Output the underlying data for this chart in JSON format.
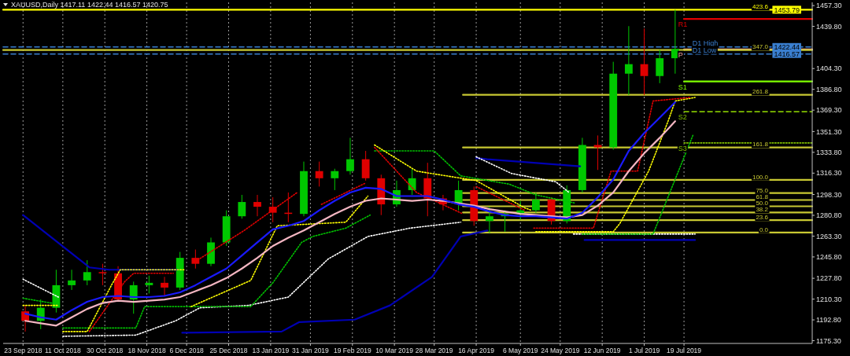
{
  "chart_data": {
    "type": "candlestick",
    "title": "XAUUSD,Daily  1417.11 1422.44 1416.57 1420.75",
    "x": [
      "2018-09-24",
      "2018-10-01",
      "2018-10-08",
      "2018-10-15",
      "2018-10-22",
      "2018-10-29",
      "2018-11-05",
      "2018-11-12",
      "2018-11-19",
      "2018-11-26",
      "2018-12-03",
      "2018-12-10",
      "2018-12-17",
      "2018-12-24",
      "2018-12-31",
      "2019-01-07",
      "2019-01-14",
      "2019-01-21",
      "2019-01-28",
      "2019-02-04",
      "2019-02-11",
      "2019-02-18",
      "2019-02-25",
      "2019-03-04",
      "2019-03-11",
      "2019-03-18",
      "2019-03-25",
      "2019-04-01",
      "2019-04-08",
      "2019-04-15",
      "2019-04-22",
      "2019-04-29",
      "2019-05-06",
      "2019-05-13",
      "2019-05-20",
      "2019-05-27",
      "2019-06-03",
      "2019-06-10",
      "2019-06-17",
      "2019-06-24",
      "2019-07-01",
      "2019-07-08",
      "2019-07-15"
    ],
    "ohlc": [
      [
        1200,
        1205,
        1183,
        1192
      ],
      [
        1192,
        1210,
        1185,
        1203
      ],
      [
        1203,
        1235,
        1199,
        1222
      ],
      [
        1222,
        1235,
        1218,
        1226
      ],
      [
        1226,
        1243,
        1222,
        1233
      ],
      [
        1233,
        1240,
        1222,
        1232
      ],
      [
        1232,
        1238,
        1208,
        1210
      ],
      [
        1210,
        1225,
        1198,
        1222
      ],
      [
        1222,
        1230,
        1215,
        1224
      ],
      [
        1224,
        1229,
        1213,
        1220
      ],
      [
        1220,
        1250,
        1218,
        1245
      ],
      [
        1245,
        1252,
        1236,
        1240
      ],
      [
        1240,
        1262,
        1238,
        1258
      ],
      [
        1258,
        1285,
        1255,
        1280
      ],
      [
        1280,
        1298,
        1278,
        1292
      ],
      [
        1292,
        1298,
        1280,
        1288
      ],
      [
        1288,
        1296,
        1275,
        1283
      ],
      [
        1283,
        1300,
        1275,
        1282
      ],
      [
        1282,
        1326,
        1280,
        1318
      ],
      [
        1318,
        1326,
        1305,
        1312
      ],
      [
        1312,
        1320,
        1302,
        1318
      ],
      [
        1318,
        1346,
        1315,
        1328
      ],
      [
        1328,
        1335,
        1310,
        1312
      ],
      [
        1312,
        1315,
        1281,
        1290
      ],
      [
        1290,
        1310,
        1288,
        1302
      ],
      [
        1302,
        1320,
        1298,
        1312
      ],
      [
        1312,
        1325,
        1280,
        1295
      ],
      [
        1295,
        1298,
        1285,
        1290
      ],
      [
        1290,
        1310,
        1285,
        1302
      ],
      [
        1302,
        1305,
        1272,
        1276
      ],
      [
        1276,
        1288,
        1266,
        1280
      ],
      [
        1280,
        1285,
        1267,
        1282
      ],
      [
        1282,
        1293,
        1277,
        1285
      ],
      [
        1285,
        1300,
        1283,
        1294
      ],
      [
        1294,
        1296,
        1273,
        1276
      ],
      [
        1276,
        1306,
        1274,
        1302
      ],
      [
        1302,
        1346,
        1300,
        1340
      ],
      [
        1340,
        1348,
        1319,
        1338
      ],
      [
        1338,
        1410,
        1336,
        1400
      ],
      [
        1400,
        1440,
        1382,
        1408
      ],
      [
        1408,
        1438,
        1382,
        1398
      ],
      [
        1398,
        1420,
        1392,
        1413
      ],
      [
        1413,
        1453.79,
        1400,
        1420.75
      ]
    ],
    "colors": [
      "#e00000",
      "#00c800",
      "#00c800",
      "#00c800",
      "#00c800",
      "#e00000",
      "#e00000",
      "#00c800",
      "#00c800",
      "#e00000",
      "#00c800",
      "#e00000",
      "#00c800",
      "#00c800",
      "#00c800",
      "#e00000",
      "#e00000",
      "#e00000",
      "#00c800",
      "#e00000",
      "#00c800",
      "#00c800",
      "#e00000",
      "#e00000",
      "#00c800",
      "#00c800",
      "#e00000",
      "#e00000",
      "#00c800",
      "#e00000",
      "#00c800",
      "#00c800",
      "#00c800",
      "#00c800",
      "#e00000",
      "#00c800",
      "#00c800",
      "#e00000",
      "#00c800",
      "#00c800",
      "#e00000",
      "#00c800",
      "#00c800"
    ],
    "series": [
      {
        "type": "line",
        "color": "#0000b4",
        "x": [
          "2018-09-23",
          "2018-10-23",
          "2018-11-01",
          "2018-12-02",
          "2018-12-03",
          "2018-12-04",
          "2019-01-18",
          "2019-01-26",
          "2019-02-20",
          "2019-03-08",
          "2019-03-27",
          "2019-04-09",
          "2019-04-21"
        ],
        "values": [
          1281,
          1237,
          1235,
          1235,
          null,
          1182,
          1183,
          1191,
          1193,
          1205,
          1229,
          1263,
          1268
        ]
      },
      {
        "type": "line",
        "color": "#0000b4",
        "x": [
          "2019-04-16",
          "2019-04-21",
          "2019-06-02",
          "2019-06-03",
          "2019-06-04",
          "2019-07-24"
        ],
        "values": [
          1329,
          1328,
          1322,
          null,
          1260,
          1260
        ]
      },
      {
        "type": "line",
        "color": "#ffffff",
        "line_style": "dotted",
        "x": [
          "2018-09-23",
          "2018-10-09",
          "2018-10-10",
          "2018-10-11",
          "2018-11-13",
          "2018-12-01",
          "2018-12-12",
          "2019-01-03",
          "2019-01-21",
          "2019-02-08",
          "2019-02-26",
          "2019-03-17",
          "2019-04-09",
          "2019-04-12",
          "2019-04-16",
          "2019-05-02",
          "2019-05-22",
          "2019-05-28",
          "2019-05-29",
          "2019-05-30",
          "2019-07-24"
        ],
        "values": [
          1227,
          1212,
          null,
          1179,
          1180,
          1192,
          1203,
          1205,
          1212,
          1244,
          1263,
          1270,
          1275,
          null,
          1330,
          1316,
          1309,
          1300,
          null,
          1265,
          1265
        ]
      },
      {
        "type": "line",
        "color": "#00c000",
        "line_style": "dotted",
        "x": [
          "2018-09-23",
          "2018-10-09",
          "2018-10-10",
          "2018-10-11",
          "2018-11-13",
          "2018-11-17",
          "2019-01-04",
          "2019-01-14",
          "2019-01-27",
          "2019-02-01",
          "2019-02-16",
          "2019-02-27",
          "2019-02-28",
          "2019-03-01",
          "2019-03-28",
          "2019-04-09",
          "2019-05-01",
          "2019-05-13",
          "2019-05-31",
          "2019-06-01",
          "2019-06-03",
          "2019-07-05",
          "2019-07-23"
        ],
        "values": [
          1211,
          1206,
          null,
          1186,
          1186,
          1204,
          1204,
          1224,
          1258,
          1263,
          1270,
          1281,
          null,
          1335,
          1335,
          1314,
          1307,
          1298,
          1291,
          null,
          1265,
          1265,
          1348
        ]
      },
      {
        "type": "line",
        "color": "#ffff00",
        "line_style": "dotted",
        "x": [
          "2018-09-23",
          "2018-10-09",
          "2018-10-10",
          "2018-10-11",
          "2018-10-22",
          "2018-11-02",
          "2018-11-06",
          "2018-12-05",
          "2018-12-06",
          "2018-12-08",
          "2019-01-04",
          "2019-01-16",
          "2019-02-16",
          "2019-02-26",
          "2019-02-28",
          "2019-03-01",
          "2019-03-20",
          "2019-04-16",
          "2019-05-08",
          "2019-05-11",
          "2019-05-12",
          "2019-05-13",
          "2019-06-17",
          "2019-06-20",
          "2019-07-03",
          "2019-07-12",
          "2019-07-15",
          "2019-07-24"
        ],
        "values": [
          1205,
          1205,
          null,
          1183,
          1183,
          1222,
          1235,
          1235,
          null,
          1204,
          1226,
          1272,
          1275,
          1297,
          null,
          1340,
          1318,
          1310,
          1287,
          1285,
          null,
          1267,
          1267,
          1274,
          1318,
          1361,
          1377,
          1380
        ]
      },
      {
        "type": "line",
        "color": "#e00000",
        "line_style": "dotted",
        "x": [
          "2018-10-23",
          "2018-11-08",
          "2018-11-12",
          "2018-11-30",
          "2018-12-02",
          "2018-12-10",
          "2019-01-01",
          "2019-01-25",
          "2019-01-27",
          "2019-02-05",
          "2019-02-25",
          "2019-02-27",
          "2019-03-01",
          "2019-03-20",
          "2019-04-10",
          "2019-04-12",
          "2019-04-16",
          "2019-05-08",
          "2019-05-10",
          "2019-05-12",
          "2019-06-08",
          "2019-06-16",
          "2019-06-28",
          "2019-07-05",
          "2019-07-22"
        ],
        "values": [
          1183,
          1225,
          1232,
          1232,
          null,
          1242,
          1268,
          1300,
          null,
          1290,
          1308,
          null,
          1338,
          1300,
          1282,
          null,
          1305,
          1285,
          null,
          1270,
          1270,
          1318,
          1318,
          1377,
          1380
        ]
      },
      {
        "type": "line",
        "color": "#f4b6c2",
        "values": [
          1192,
          1190,
          1188,
          1195,
          1202,
          1207,
          1209,
          1208,
          1209,
          1210,
          1212,
          1217,
          1222,
          1228,
          1236,
          1245,
          1255,
          1262,
          1268,
          1275,
          1282,
          1288,
          1293,
          1295,
          1294,
          1293,
          1294,
          1293,
          1291,
          1289,
          1286,
          1284,
          1282,
          1281,
          1280,
          1279,
          1281,
          1289,
          1300,
          1318,
          1333,
          1346,
          1360
        ]
      },
      {
        "type": "line",
        "color": "#1a1aff",
        "values": [
          1198,
          1195,
          1193,
          1201,
          1208,
          1212,
          1213,
          1212,
          1212,
          1213,
          1216,
          1222,
          1229,
          1236,
          1247,
          1258,
          1269,
          1272,
          1276,
          1285,
          1293,
          1300,
          1304,
          1303,
          1297,
          1297,
          1297,
          1294,
          1290,
          1288,
          1284,
          1281,
          1280,
          1280,
          1279,
          1278,
          1283,
          1296,
          1311,
          1335,
          1350,
          1363,
          1376
        ]
      },
      {
        "type": "line",
        "name": "R1",
        "color": "#e00000",
        "x": [
          "2019-07-19",
          "2019-09-15"
        ],
        "values": [
          1446,
          1446
        ]
      },
      {
        "type": "line",
        "name": "P",
        "color": "#f4a0a0",
        "x": [
          "2019-07-19",
          "2019-09-15"
        ],
        "values": [
          1420.5,
          1420.5
        ]
      },
      {
        "type": "line",
        "name": "S1",
        "color": "#80ff00",
        "x": [
          "2019-07-19",
          "2019-09-15"
        ],
        "values": [
          1393.5,
          1393.5
        ]
      },
      {
        "type": "line",
        "name": "S2",
        "color": "#80c000",
        "line_style": "dashed",
        "x": [
          "2019-07-19",
          "2019-09-15"
        ],
        "values": [
          1368,
          1368
        ]
      },
      {
        "type": "line",
        "name": "S3",
        "color": "#80c000",
        "line_style": "dotted",
        "x": [
          "2019-07-19",
          "2019-09-15"
        ],
        "values": [
          1341.7,
          1341.7
        ]
      },
      {
        "type": "line",
        "name": "D1 High",
        "color": "#3a7fd0",
        "line_style": "dashed",
        "x": [
          "2018-09-14",
          "2019-09-15"
        ],
        "values": [
          1422.44,
          1422.44
        ]
      },
      {
        "type": "line",
        "name": "D1 Low",
        "color": "#3a7fd0",
        "line_style": "dashed",
        "x": [
          "2018-09-14",
          "2019-09-15"
        ],
        "values": [
          1416.57,
          1416.57
        ]
      },
      {
        "type": "line",
        "name": "423.6",
        "color": "#ffff00",
        "x": [
          "2018-09-14",
          "2019-09-15"
        ],
        "values": [
          1453.79,
          1453.79
        ]
      },
      {
        "type": "line",
        "name": "347.0",
        "color": "#c8c832",
        "x": [
          "2018-09-14",
          "2019-09-15"
        ],
        "values": [
          1419.9,
          1419.9
        ]
      },
      {
        "type": "line",
        "name": "261.8",
        "color": "#c8c832",
        "x": [
          "2019-04-10",
          "2019-09-15"
        ],
        "values": [
          1382.2,
          1382.2
        ]
      },
      {
        "type": "line",
        "name": "161.8",
        "color": "#c8c832",
        "x": [
          "2019-04-10",
          "2019-09-15"
        ],
        "values": [
          1337.9,
          1337.9
        ]
      },
      {
        "type": "line",
        "name": "100.0",
        "color": "#c8c832",
        "x": [
          "2019-04-10",
          "2019-09-15"
        ],
        "values": [
          1310.6,
          1310.6
        ]
      },
      {
        "type": "line",
        "name": "75.0",
        "color": "#c8c832",
        "x": [
          "2019-04-10",
          "2019-09-15"
        ],
        "values": [
          1299.5,
          1299.5
        ]
      },
      {
        "type": "line",
        "name": "61.8",
        "color": "#c8c832",
        "x": [
          "2019-04-10",
          "2019-09-15"
        ],
        "values": [
          1293.7,
          1293.7
        ]
      },
      {
        "type": "line",
        "name": "50.0",
        "color": "#c8c832",
        "x": [
          "2019-04-10",
          "2019-09-15"
        ],
        "values": [
          1288.4,
          1288.4
        ]
      },
      {
        "type": "line",
        "name": "38.2",
        "color": "#c8c832",
        "x": [
          "2019-04-10",
          "2019-09-15"
        ],
        "values": [
          1283.2,
          1283.2
        ]
      },
      {
        "type": "line",
        "name": "23.6",
        "color": "#c8c832",
        "x": [
          "2019-04-10",
          "2019-09-15"
        ],
        "values": [
          1276.7,
          1276.7
        ]
      },
      {
        "type": "line",
        "name": "0.0",
        "color": "#c8c832",
        "x": [
          "2019-04-10",
          "2019-09-15"
        ],
        "values": [
          1266.3,
          1266.3
        ]
      }
    ],
    "annotations": [
      {
        "text": "1453.79",
        "x": "2019-09-10",
        "y": 1453.79
      },
      {
        "text": "1422.44",
        "x": "2019-09-10",
        "y": 1422.44
      },
      {
        "text": "1416.57",
        "x": "2019-09-10",
        "y": 1416.57
      }
    ],
    "xlim": [
      "2018-09-14",
      "2019-09-15"
    ],
    "xticks": [
      {
        "value": "2018-09-23",
        "label": "23 Sep 2018"
      },
      {
        "value": "2018-10-11",
        "label": "11 Oct 2018"
      },
      {
        "value": "2018-10-30",
        "label": "30 Oct 2018"
      },
      {
        "value": "2018-11-18",
        "label": "18 Nov 2018"
      },
      {
        "value": "2018-12-06",
        "label": "6 Dec 2018"
      },
      {
        "value": "2018-12-25",
        "label": "25 Dec 2018"
      },
      {
        "value": "2019-01-13",
        "label": "13 Jan 2019"
      },
      {
        "value": "2019-01-31",
        "label": "31 Jan 2019"
      },
      {
        "value": "2019-02-19",
        "label": "19 Feb 2019"
      },
      {
        "value": "2019-03-10",
        "label": "10 Mar 2019"
      },
      {
        "value": "2019-03-28",
        "label": "28 Mar 2019"
      },
      {
        "value": "2019-04-16",
        "label": "16 Apr 2019"
      },
      {
        "value": "2019-05-06",
        "label": "6 May 2019"
      },
      {
        "value": "2019-05-24",
        "label": "24 May 2019"
      },
      {
        "value": "2019-06-12",
        "label": "12 Jun 2019"
      },
      {
        "value": "2019-07-01",
        "label": "1 Jul 2019"
      },
      {
        "value": "2019-07-19",
        "label": "19 Jul 2019"
      }
    ],
    "ylim": [
      1173,
      1460
    ],
    "yticks": [
      {
        "value": 1175.3,
        "label": "1175.30"
      },
      {
        "value": 1192.8,
        "label": "1192.80"
      },
      {
        "value": 1210.3,
        "label": "1210.30"
      },
      {
        "value": 1227.8,
        "label": "1227.80"
      },
      {
        "value": 1245.8,
        "label": "1245.80"
      },
      {
        "value": 1263.3,
        "label": "1263.30"
      },
      {
        "value": 1280.8,
        "label": "1280.80"
      },
      {
        "value": 1298.3,
        "label": "1298.30"
      },
      {
        "value": 1316.3,
        "label": "1316.30"
      },
      {
        "value": 1333.8,
        "label": "1333.80"
      },
      {
        "value": 1351.3,
        "label": "1351.30"
      },
      {
        "value": 1369.3,
        "label": "1369.30"
      },
      {
        "value": 1386.8,
        "label": "1386.80"
      },
      {
        "value": 1404.3,
        "label": "1404.30"
      },
      {
        "value": 1439.8,
        "label": "1439.80"
      },
      {
        "value": 1457.3,
        "label": "1457.30"
      }
    ],
    "grid": "x"
  }
}
